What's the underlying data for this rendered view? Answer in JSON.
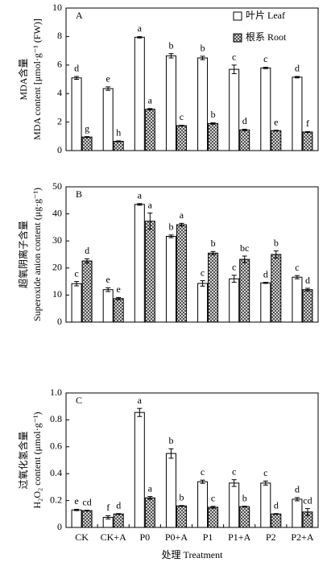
{
  "chart_data": [
    {
      "type": "bar",
      "label": "A",
      "ylabel": [
        "MDA含量",
        "MDA content [μmol·g⁻¹ (FW)]"
      ],
      "ylim": [
        0,
        10
      ],
      "yticks": [
        0,
        2,
        4,
        6,
        8,
        10
      ],
      "legend": "upper right",
      "series": [
        {
          "name": "叶片 Leaf",
          "color": "#ffffff",
          "hatch": false,
          "values": [
            5.1,
            4.35,
            7.95,
            6.65,
            6.5,
            5.7,
            5.8,
            5.15
          ],
          "errors": [
            0.1,
            0.12,
            0.05,
            0.15,
            0.12,
            0.3,
            0.05,
            0.05
          ],
          "labels": [
            "d",
            "e",
            "a",
            "b",
            "b",
            "c",
            "c",
            "d"
          ]
        },
        {
          "name": "根系 Root",
          "color": "#555555",
          "hatch": true,
          "values": [
            0.95,
            0.65,
            2.9,
            1.75,
            1.9,
            1.45,
            1.4,
            1.3
          ],
          "errors": [
            0.03,
            0.03,
            0.05,
            0.03,
            0.05,
            0.05,
            0.03,
            0.03
          ],
          "labels": [
            "g",
            "h",
            "a",
            "c",
            "b",
            "d",
            "e",
            "f"
          ]
        }
      ]
    },
    {
      "type": "bar",
      "label": "B",
      "ylabel": [
        "超氧阴离子含量",
        "Superoxide anion content (μg·g⁻¹)"
      ],
      "ylim": [
        0,
        50
      ],
      "yticks": [
        0,
        10,
        20,
        30,
        40,
        50
      ],
      "series": [
        {
          "color": "#ffffff",
          "hatch": false,
          "values": [
            14.2,
            12,
            43.5,
            31.7,
            14.3,
            16,
            14.5,
            16.6
          ],
          "errors": [
            0.8,
            0.7,
            0.3,
            0.5,
            1,
            1.3,
            0.2,
            0.6
          ],
          "labels": [
            "c",
            "e",
            "a",
            "b",
            "c",
            "c",
            "d",
            "c"
          ]
        },
        {
          "color": "#555555",
          "hatch": true,
          "values": [
            22.6,
            8.7,
            37.3,
            36,
            25.5,
            23.2,
            25,
            12
          ],
          "errors": [
            0.8,
            0.4,
            3,
            0.5,
            0.6,
            1.2,
            1.3,
            0.5
          ],
          "labels": [
            "d",
            "e",
            "a",
            "a",
            "b",
            "bc",
            "b",
            "d"
          ]
        }
      ]
    },
    {
      "type": "bar",
      "label": "C",
      "ylabel": [
        "过氧化氢含量",
        "H₂O₂ content (μmol·g⁻¹)"
      ],
      "xlabel": "处理 Treatment",
      "categories": [
        "CK",
        "CK+A",
        "P0",
        "P0+A",
        "P1",
        "P1+A",
        "P2",
        "P2+A"
      ],
      "ylim": [
        0,
        1
      ],
      "yticks": [
        0,
        0.2,
        0.4,
        0.6,
        0.8,
        {
          "value": 1,
          "label": "1.0"
        }
      ],
      "series": [
        {
          "color": "#ffffff",
          "hatch": false,
          "values": [
            0.13,
            0.075,
            0.855,
            0.55,
            0.34,
            0.33,
            0.33,
            0.21
          ],
          "errors": [
            0.005,
            0.012,
            0.03,
            0.035,
            0.012,
            0.025,
            0.015,
            0.012
          ],
          "labels": [
            "e",
            "f",
            "a",
            "b",
            "c",
            "c",
            "c",
            "d"
          ]
        },
        {
          "color": "#555555",
          "hatch": true,
          "values": [
            0.125,
            0.1,
            0.22,
            0.16,
            0.15,
            0.155,
            0.1,
            0.115
          ],
          "errors": [
            0.003,
            0.003,
            0.01,
            0.003,
            0.007,
            0.003,
            0.003,
            0.025
          ],
          "labels": [
            "cd",
            "d",
            "a",
            "b",
            "c",
            "b",
            "d",
            "cd"
          ]
        }
      ]
    }
  ]
}
